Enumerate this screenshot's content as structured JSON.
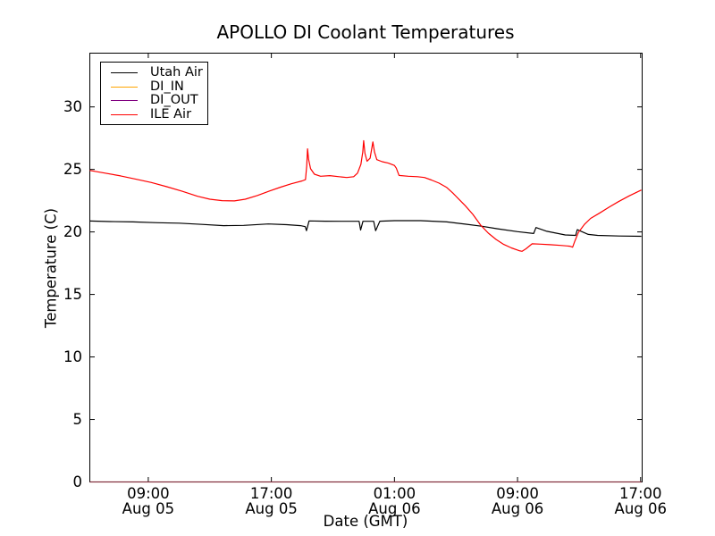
{
  "chart_data": {
    "type": "line",
    "title": "APOLLO DI Coolant Temperatures",
    "xlabel": "Date (GMT)",
    "ylabel": "Temperature (C)",
    "x_unit": "hours since Aug 05 00:00 GMT",
    "xlim": [
      5.2,
      41.1
    ],
    "ylim": [
      0,
      34.3
    ],
    "grid": false,
    "yticks": [
      0,
      5,
      10,
      15,
      20,
      25,
      30
    ],
    "xticks": [
      {
        "t": 9,
        "time": "09:00",
        "date": "Aug 05"
      },
      {
        "t": 17,
        "time": "17:00",
        "date": "Aug 05"
      },
      {
        "t": 25,
        "time": "01:00",
        "date": "Aug 06"
      },
      {
        "t": 33,
        "time": "09:00",
        "date": "Aug 06"
      },
      {
        "t": 41,
        "time": "17:00",
        "date": "Aug 06"
      }
    ],
    "legend": {
      "position": "upper left",
      "entries": [
        {
          "name": "Utah Air",
          "color": "#000000"
        },
        {
          "name": "DI_IN",
          "color": "#ffa500"
        },
        {
          "name": "DI_OUT",
          "color": "#800080"
        },
        {
          "name": "ILE Air",
          "color": "#ff0000"
        }
      ]
    },
    "series": [
      {
        "name": "Utah Air",
        "color": "#000000",
        "points": [
          [
            5.2,
            20.87
          ],
          [
            6.5,
            20.83
          ],
          [
            8.0,
            20.8
          ],
          [
            9.6,
            20.74
          ],
          [
            11.0,
            20.7
          ],
          [
            12.5,
            20.6
          ],
          [
            13.9,
            20.5
          ],
          [
            15.2,
            20.52
          ],
          [
            16.8,
            20.64
          ],
          [
            18.0,
            20.58
          ],
          [
            18.9,
            20.5
          ],
          [
            19.2,
            20.42
          ],
          [
            19.28,
            20.1
          ],
          [
            19.45,
            20.88
          ],
          [
            20.5,
            20.86
          ],
          [
            21.5,
            20.85
          ],
          [
            22.7,
            20.85
          ],
          [
            22.8,
            20.15
          ],
          [
            22.95,
            20.85
          ],
          [
            23.65,
            20.85
          ],
          [
            23.78,
            20.1
          ],
          [
            24.05,
            20.86
          ],
          [
            25.0,
            20.9
          ],
          [
            26.7,
            20.9
          ],
          [
            28.4,
            20.8
          ],
          [
            29.6,
            20.62
          ],
          [
            30.7,
            20.45
          ],
          [
            31.7,
            20.25
          ],
          [
            33.0,
            20.02
          ],
          [
            34.05,
            19.87
          ],
          [
            34.2,
            20.35
          ],
          [
            34.9,
            20.05
          ],
          [
            36.1,
            19.76
          ],
          [
            36.78,
            19.72
          ],
          [
            36.88,
            20.18
          ],
          [
            37.6,
            19.8
          ],
          [
            38.2,
            19.72
          ],
          [
            39.6,
            19.67
          ],
          [
            41.05,
            19.65
          ]
        ]
      },
      {
        "name": "DI_IN",
        "color": "#ffa500",
        "note": "constant 0, lies along bottom axis",
        "points": [
          [
            5.2,
            0
          ],
          [
            41.05,
            0
          ]
        ]
      },
      {
        "name": "DI_OUT",
        "color": "#800080",
        "note": "constant 0, lies along bottom axis",
        "points": [
          [
            5.2,
            0
          ],
          [
            41.05,
            0
          ]
        ]
      },
      {
        "name": "ILE Air",
        "color": "#ff0000",
        "points": [
          [
            5.2,
            24.92
          ],
          [
            6.2,
            24.7
          ],
          [
            7.2,
            24.48
          ],
          [
            8.2,
            24.22
          ],
          [
            9.2,
            23.95
          ],
          [
            10.2,
            23.62
          ],
          [
            11.2,
            23.25
          ],
          [
            12.2,
            22.85
          ],
          [
            13.0,
            22.62
          ],
          [
            13.8,
            22.5
          ],
          [
            14.6,
            22.48
          ],
          [
            15.3,
            22.62
          ],
          [
            16.1,
            22.92
          ],
          [
            16.9,
            23.28
          ],
          [
            17.6,
            23.58
          ],
          [
            18.3,
            23.85
          ],
          [
            19.0,
            24.08
          ],
          [
            19.22,
            24.18
          ],
          [
            19.3,
            25.3
          ],
          [
            19.35,
            26.65
          ],
          [
            19.42,
            25.8
          ],
          [
            19.55,
            25.05
          ],
          [
            19.8,
            24.62
          ],
          [
            20.2,
            24.45
          ],
          [
            20.8,
            24.5
          ],
          [
            21.4,
            24.42
          ],
          [
            21.9,
            24.35
          ],
          [
            22.35,
            24.42
          ],
          [
            22.6,
            24.7
          ],
          [
            22.82,
            25.4
          ],
          [
            22.94,
            26.4
          ],
          [
            23.0,
            27.3
          ],
          [
            23.08,
            26.3
          ],
          [
            23.22,
            25.65
          ],
          [
            23.42,
            25.9
          ],
          [
            23.6,
            27.2
          ],
          [
            23.7,
            26.4
          ],
          [
            23.85,
            25.78
          ],
          [
            24.2,
            25.62
          ],
          [
            24.6,
            25.5
          ],
          [
            25.0,
            25.32
          ],
          [
            25.12,
            25.1
          ],
          [
            25.3,
            24.52
          ],
          [
            25.9,
            24.45
          ],
          [
            26.5,
            24.42
          ],
          [
            26.95,
            24.35
          ],
          [
            27.4,
            24.15
          ],
          [
            27.9,
            23.9
          ],
          [
            28.4,
            23.55
          ],
          [
            28.8,
            23.1
          ],
          [
            29.2,
            22.6
          ],
          [
            29.6,
            22.1
          ],
          [
            30.1,
            21.4
          ],
          [
            30.6,
            20.55
          ],
          [
            31.1,
            19.9
          ],
          [
            31.6,
            19.4
          ],
          [
            32.1,
            19.0
          ],
          [
            32.6,
            18.72
          ],
          [
            33.1,
            18.5
          ],
          [
            33.3,
            18.45
          ],
          [
            33.55,
            18.65
          ],
          [
            33.95,
            19.05
          ],
          [
            34.5,
            19.02
          ],
          [
            35.1,
            18.98
          ],
          [
            35.8,
            18.92
          ],
          [
            36.4,
            18.86
          ],
          [
            36.58,
            18.78
          ],
          [
            36.72,
            19.25
          ],
          [
            36.95,
            19.95
          ],
          [
            37.35,
            20.6
          ],
          [
            37.75,
            21.08
          ],
          [
            38.35,
            21.52
          ],
          [
            38.95,
            21.98
          ],
          [
            39.55,
            22.42
          ],
          [
            40.25,
            22.88
          ],
          [
            41.05,
            23.35
          ]
        ]
      }
    ]
  }
}
